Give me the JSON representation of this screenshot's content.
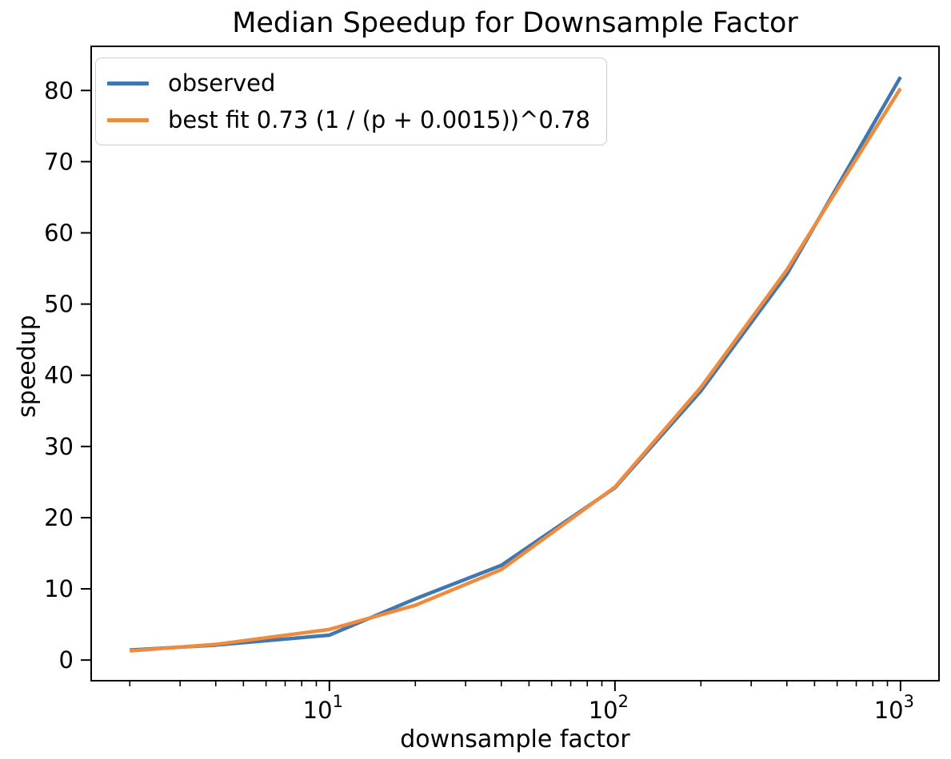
{
  "chart_data": {
    "type": "line",
    "title": "Median Speedup for Downsample Factor",
    "xlabel": "downsample factor",
    "ylabel": "speedup",
    "x_scale": "log",
    "grid": false,
    "legend_position": "upper left",
    "x": [
      2,
      4,
      10,
      20,
      40,
      100,
      200,
      400,
      1000
    ],
    "series": [
      {
        "name": "observed",
        "color": "#4077b0",
        "values": [
          1.4,
          2.1,
          3.5,
          8.6,
          13.3,
          24.2,
          37.8,
          54.2,
          81.9
        ]
      },
      {
        "name": "best fit 0.73 (1 / (p + 0.0015))^0.78",
        "color": "#ee8b3e",
        "values": [
          1.3,
          2.2,
          4.3,
          7.7,
          12.7,
          24.3,
          38.3,
          54.8,
          80.3
        ]
      }
    ],
    "xlim": [
      1.465,
      1364
    ],
    "ylim": [
      -2.9,
      86.2
    ],
    "yticks": [
      0,
      10,
      20,
      30,
      40,
      50,
      60,
      70,
      80
    ],
    "xticks": [
      {
        "value": 10,
        "base": "10",
        "exponent": "1"
      },
      {
        "value": 100,
        "base": "10",
        "exponent": "2"
      },
      {
        "value": 1000,
        "base": "10",
        "exponent": "3"
      }
    ],
    "x_minor_ticks": [
      2,
      3,
      4,
      5,
      6,
      7,
      8,
      9,
      20,
      30,
      40,
      50,
      60,
      70,
      80,
      90,
      200,
      300,
      400,
      500,
      600,
      700,
      800,
      900
    ],
    "axis_color": "#000000"
  }
}
